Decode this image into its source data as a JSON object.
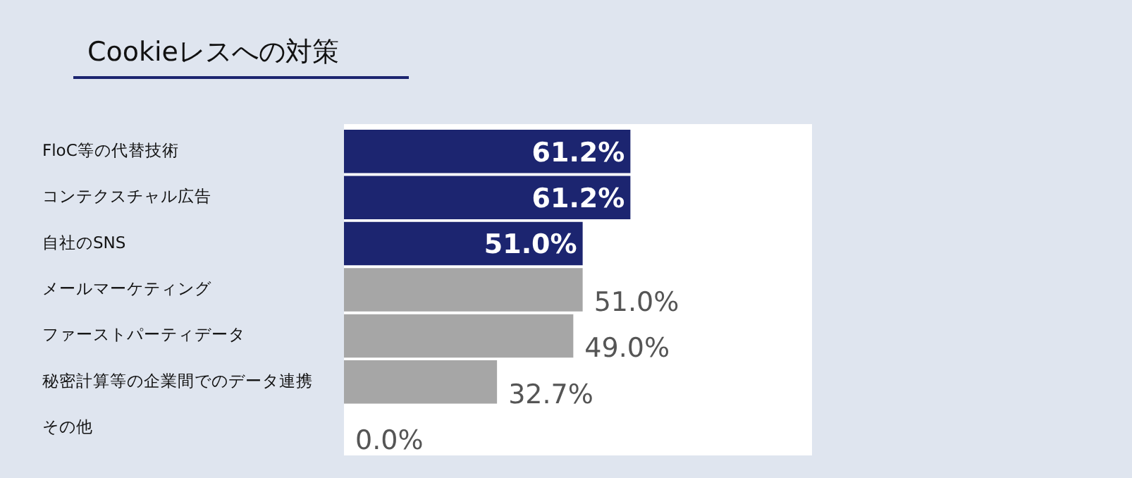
{
  "chart_data": {
    "type": "bar",
    "orientation": "horizontal",
    "title": "Cookieレスへの対策",
    "categories": [
      "FloC等の代替技術",
      "コンテクスチャル広告",
      "自社のSNS",
      "メールマーケティング",
      "ファーストパーティデータ",
      "秘密計算等の企業間でのデータ連携",
      "その他"
    ],
    "values": [
      61.2,
      61.2,
      51.0,
      51.0,
      49.0,
      32.7,
      0.0
    ],
    "colors": [
      "#1c2570",
      "#1c2570",
      "#1c2570",
      "#a6a6a6",
      "#a6a6a6",
      "#a6a6a6",
      "#a6a6a6"
    ],
    "value_labels": [
      "61.2%",
      "61.2%",
      "51.0%",
      "51.0%",
      "49.0%",
      "32.7%",
      "0.0%"
    ],
    "xlim": [
      0,
      100
    ],
    "tick_labels": "y"
  }
}
